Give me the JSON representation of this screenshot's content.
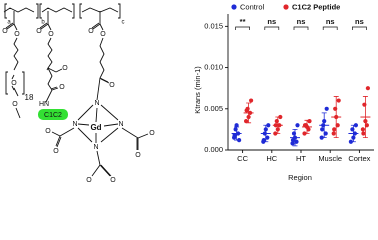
{
  "structure": {
    "labels": [
      "a",
      "b",
      "c",
      "O",
      "O",
      "O",
      "18",
      "O",
      "O",
      "O",
      "O",
      "O",
      "HN",
      "C1C2",
      "O",
      "O",
      "O",
      "N",
      "N",
      "N",
      "N",
      "Gd",
      "O",
      "O",
      "O",
      "O",
      "O",
      "O"
    ]
  },
  "chart_data": {
    "type": "dot",
    "ylabel": "Ktrans (min-1)",
    "xlabel": "Region",
    "categories": [
      "CC",
      "HC",
      "HT",
      "Muscle",
      "Cortex"
    ],
    "significance": [
      "**",
      "ns",
      "ns",
      "ns",
      "ns"
    ],
    "ylim": [
      0,
      0.0165
    ],
    "yticks": [
      {
        "value": 0,
        "label": "0.000"
      },
      0.005,
      {
        "value": 0.01,
        "label": "0.010"
      },
      0.015
    ],
    "legend": "top",
    "series": [
      {
        "name": "Control",
        "color": "#1f2bd6",
        "points": [
          [
            0.0015,
            0.002,
            0.0025,
            0.0012,
            0.003,
            0.0018
          ],
          [
            0.001,
            0.0015,
            0.002,
            0.003,
            0.0025,
            0.0012
          ],
          [
            0.0008,
            0.001,
            0.002,
            0.003,
            0.0015,
            0.0012
          ],
          [
            0.0015,
            0.002,
            0.003,
            0.005,
            0.0035,
            0.0025
          ],
          [
            0.001,
            0.002,
            0.0025,
            0.003,
            0.0015
          ]
        ],
        "means": [
          0.002,
          0.002,
          0.0015,
          0.003,
          0.002
        ],
        "errors": [
          0.0008,
          0.001,
          0.001,
          0.0015,
          0.001
        ]
      },
      {
        "name": "C1C2 Peptide",
        "color": "#e0262b",
        "points": [
          [
            0.0035,
            0.0045,
            0.005,
            0.006,
            0.004,
            0.0048
          ],
          [
            0.002,
            0.003,
            0.0035,
            0.004,
            0.0025,
            0.003
          ],
          [
            0.002,
            0.0025,
            0.003,
            0.0035,
            0.0028,
            0.003
          ],
          [
            0.002,
            0.003,
            0.005,
            0.006,
            0.004,
            0.0025
          ],
          [
            0.0025,
            0.003,
            0.0055,
            0.0075,
            0.0035,
            0.002
          ]
        ],
        "means": [
          0.0045,
          0.003,
          0.0028,
          0.004,
          0.004
        ],
        "errors": [
          0.0012,
          0.001,
          0.0008,
          0.0025,
          0.0025
        ]
      }
    ]
  }
}
